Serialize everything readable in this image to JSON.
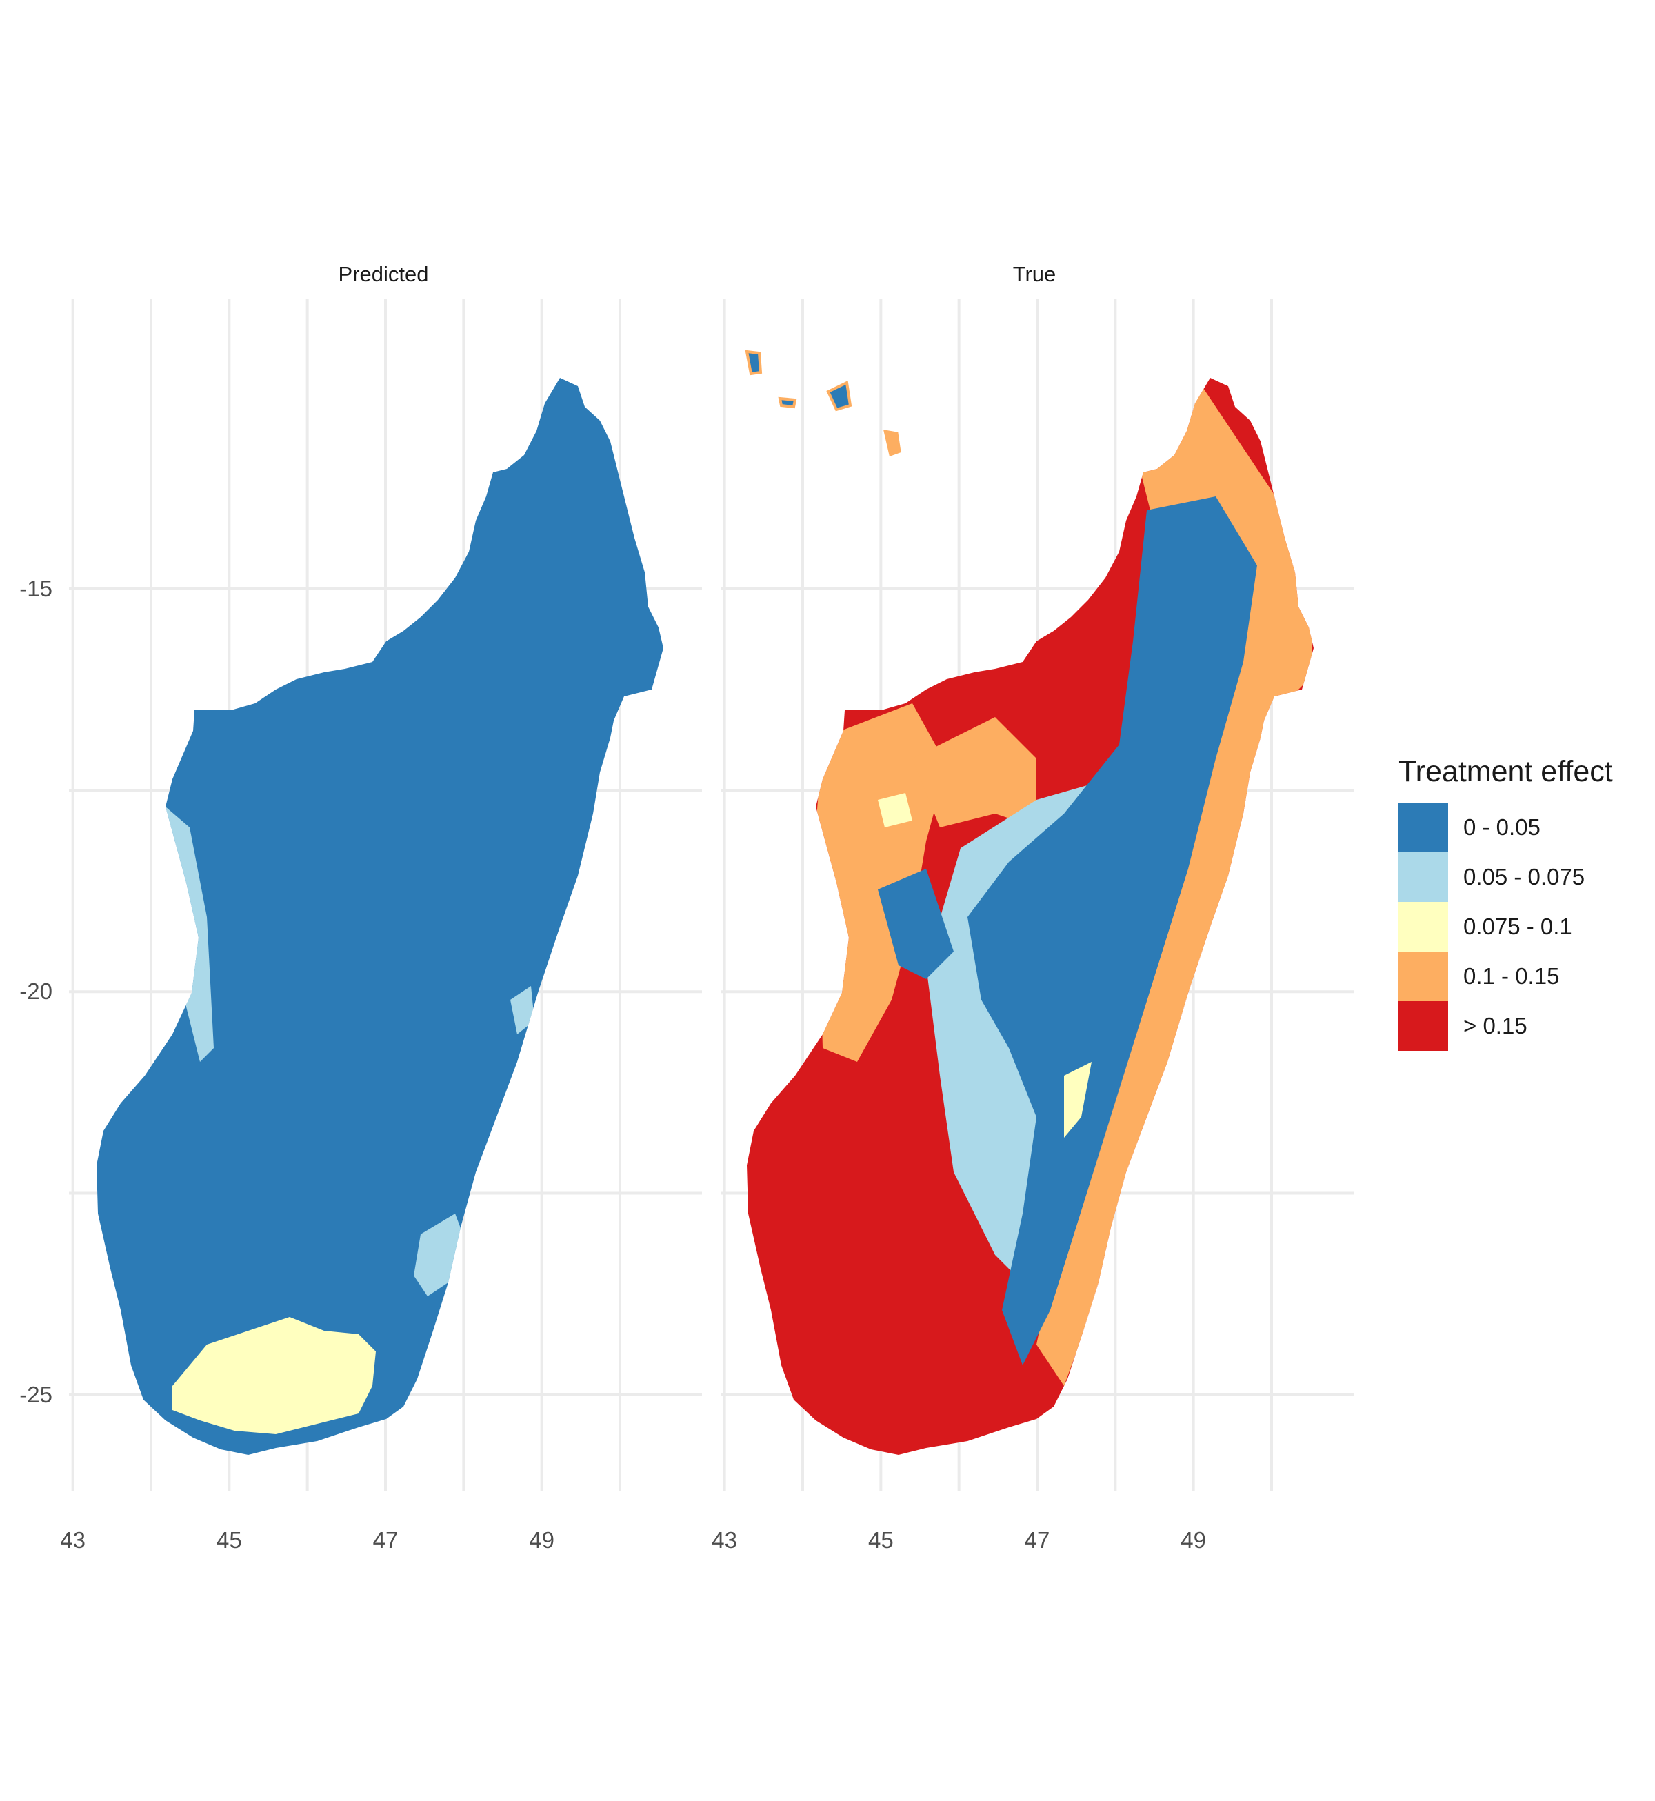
{
  "chart_data": {
    "type": "map",
    "colorbar_title": "Treatment effect",
    "legend_position": "right",
    "grid": true,
    "xlim": [
      42.95,
      51.05
    ],
    "ylim": [
      -26.2,
      -11.4
    ],
    "x_ticks": [
      43,
      45,
      47,
      49
    ],
    "y_ticks": [
      -15,
      -20,
      -25
    ],
    "legend": [
      {
        "label": "0 - 0.05",
        "color": "#2c7bb6"
      },
      {
        "label": "0.05 - 0.075",
        "color": "#abd9e9"
      },
      {
        "label": "0.075 - 0.1",
        "color": "#ffffbf"
      },
      {
        "label": "0.1 - 0.15",
        "color": "#fdae61"
      },
      {
        "label": "> 0.15",
        "color": "#d7191c"
      }
    ],
    "panels": [
      {
        "title": "Predicted",
        "dominant_class": "0 - 0.05",
        "regions": [
          {
            "class": "0.075 - 0.1",
            "area": "far south, near 45–46.5°E, -24.5°"
          },
          {
            "class": "0.05 - 0.075",
            "area": "west coast (~44°E, -18° to -20°) and southeast coast (~47°E, -23° to -24°)"
          }
        ]
      },
      {
        "title": "True",
        "dominant_class": "> 0.15",
        "regions": [
          {
            "class": "> 0.15",
            "area": "west, south and north interior"
          },
          {
            "class": "0.1 - 0.15",
            "area": "east coastal strip and western fringe"
          },
          {
            "class": "0 - 0.05",
            "area": "central-eastern highlands and northeast"
          },
          {
            "class": "0.05 - 0.075",
            "area": "margins of central highlands"
          },
          {
            "class": "0.075 - 0.1",
            "area": "scattered borders between classes"
          }
        ]
      }
    ]
  }
}
